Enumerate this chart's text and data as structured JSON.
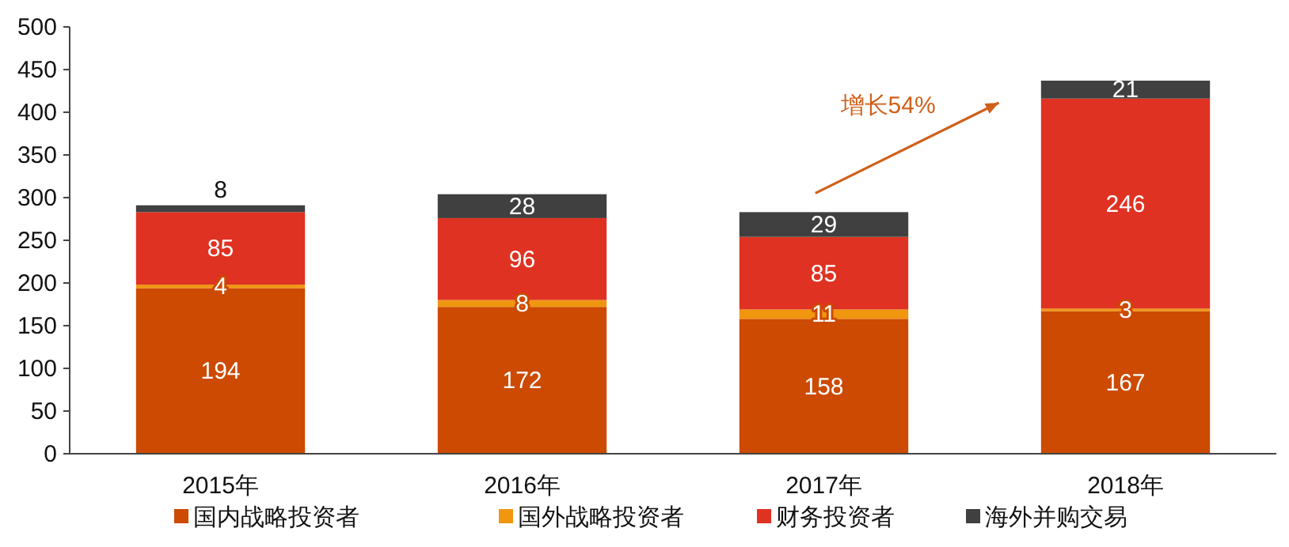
{
  "chart_data": {
    "type": "bar",
    "stacked": true,
    "categories": [
      "2015年",
      "2016年",
      "2017年",
      "2018年"
    ],
    "series": [
      {
        "name": "国内战略投资者",
        "color": "#cc4a02",
        "values": [
          194,
          172,
          158,
          167
        ]
      },
      {
        "name": "国外战略投资者",
        "color": "#f0960f",
        "values": [
          4,
          8,
          11,
          3
        ]
      },
      {
        "name": "财务投资者",
        "color": "#df3222",
        "values": [
          85,
          96,
          85,
          246
        ]
      },
      {
        "name": "海外并购交易",
        "color": "#404040",
        "values": [
          8,
          28,
          29,
          21
        ]
      }
    ],
    "ylim": [
      0,
      500
    ],
    "yticks": [
      0,
      50,
      100,
      150,
      200,
      250,
      300,
      350,
      400,
      450,
      500
    ],
    "data_labels": true,
    "legend": "bottom",
    "grid": false,
    "annotations": [
      "增长54%"
    ]
  }
}
